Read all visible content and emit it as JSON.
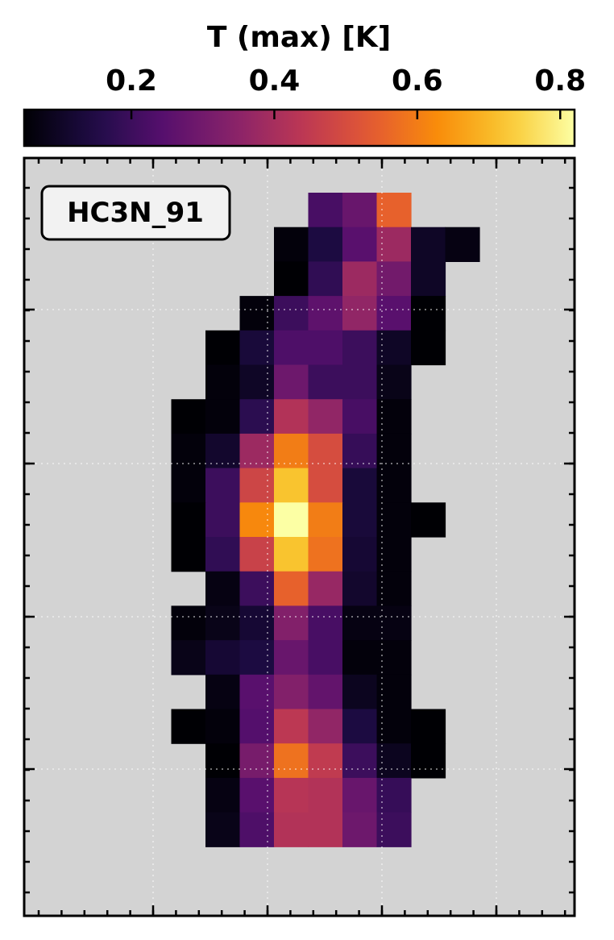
{
  "chart_data": {
    "type": "heatmap",
    "title": "",
    "colorbar": {
      "label": "T (max) [K]",
      "colormap": "inferno",
      "range": [
        0.05,
        0.82
      ],
      "ticks": [
        0.2,
        0.4,
        0.6,
        0.8
      ],
      "tick_labels": [
        "0.2",
        "0.4",
        "0.6",
        "0.8"
      ],
      "position": "top"
    },
    "map_label": "HC3N_91",
    "background_color": "#d3d3d3",
    "grid": true,
    "xlabel": "",
    "ylabel": "",
    "n_cols": 16,
    "n_rows": 22,
    "cell_values": [
      [
        null,
        null,
        null,
        null,
        null,
        null,
        null,
        null,
        0.22,
        0.28,
        0.55,
        null,
        null,
        null,
        null,
        null
      ],
      [
        null,
        null,
        null,
        null,
        null,
        null,
        null,
        0.06,
        0.14,
        0.25,
        0.38,
        0.1,
        0.07,
        null,
        null,
        null
      ],
      [
        null,
        null,
        null,
        null,
        null,
        null,
        null,
        0.05,
        0.18,
        0.38,
        0.3,
        0.1,
        null,
        null,
        null,
        null
      ],
      [
        null,
        null,
        null,
        null,
        null,
        null,
        0.06,
        0.2,
        0.26,
        0.36,
        0.25,
        0.05,
        null,
        null,
        null,
        null
      ],
      [
        null,
        null,
        null,
        null,
        null,
        0.05,
        0.13,
        0.23,
        0.23,
        0.2,
        0.1,
        0.05,
        null,
        null,
        null,
        null
      ],
      [
        null,
        null,
        null,
        null,
        null,
        0.06,
        0.1,
        0.29,
        0.2,
        0.2,
        0.08,
        null,
        null,
        null,
        null,
        null
      ],
      [
        null,
        null,
        null,
        null,
        0.05,
        0.06,
        0.17,
        0.42,
        0.36,
        0.22,
        0.06,
        null,
        null,
        null,
        null,
        null
      ],
      [
        null,
        null,
        null,
        null,
        0.06,
        0.11,
        0.38,
        0.6,
        0.5,
        0.19,
        0.06,
        null,
        null,
        null,
        null,
        null
      ],
      [
        null,
        null,
        null,
        null,
        0.06,
        0.2,
        0.48,
        0.72,
        0.5,
        0.13,
        0.06,
        null,
        null,
        null,
        null,
        null
      ],
      [
        null,
        null,
        null,
        null,
        0.05,
        0.2,
        0.62,
        0.82,
        0.6,
        0.13,
        0.06,
        0.05,
        null,
        null,
        null,
        null
      ],
      [
        null,
        null,
        null,
        null,
        0.05,
        0.18,
        0.47,
        0.72,
        0.58,
        0.12,
        0.06,
        null,
        null,
        null,
        null,
        null
      ],
      [
        null,
        null,
        null,
        null,
        null,
        0.07,
        0.2,
        0.55,
        0.37,
        0.11,
        0.06,
        null,
        null,
        null,
        null,
        null
      ],
      [
        null,
        null,
        null,
        null,
        0.06,
        0.08,
        0.12,
        0.33,
        0.22,
        0.07,
        0.07,
        null,
        null,
        null,
        null,
        null
      ],
      [
        null,
        null,
        null,
        null,
        0.08,
        0.12,
        0.14,
        0.28,
        0.22,
        0.06,
        0.06,
        null,
        null,
        null,
        null,
        null
      ],
      [
        null,
        null,
        null,
        null,
        null,
        0.07,
        0.25,
        0.33,
        0.27,
        0.09,
        0.06,
        null,
        null,
        null,
        null,
        null
      ],
      [
        null,
        null,
        null,
        null,
        0.05,
        0.06,
        0.24,
        0.44,
        0.36,
        0.14,
        0.06,
        0.05,
        null,
        null,
        null,
        null
      ],
      [
        null,
        null,
        null,
        null,
        null,
        0.05,
        0.31,
        0.58,
        0.45,
        0.2,
        0.09,
        0.05,
        null,
        null,
        null,
        null
      ],
      [
        null,
        null,
        null,
        null,
        null,
        0.07,
        0.25,
        0.43,
        0.42,
        0.28,
        0.19,
        null,
        null,
        null,
        null,
        null
      ],
      [
        null,
        null,
        null,
        null,
        null,
        0.08,
        0.23,
        0.42,
        0.42,
        0.29,
        0.2,
        null,
        null,
        null,
        null,
        null
      ],
      [
        null,
        null,
        null,
        null,
        null,
        null,
        null,
        null,
        null,
        null,
        null,
        null,
        null,
        null,
        null,
        null
      ],
      [
        null,
        null,
        null,
        null,
        null,
        null,
        null,
        null,
        null,
        null,
        null,
        null,
        null,
        null,
        null,
        null
      ],
      [
        null,
        null,
        null,
        null,
        null,
        null,
        null,
        null,
        null,
        null,
        null,
        null,
        null,
        null,
        null,
        null
      ]
    ]
  }
}
